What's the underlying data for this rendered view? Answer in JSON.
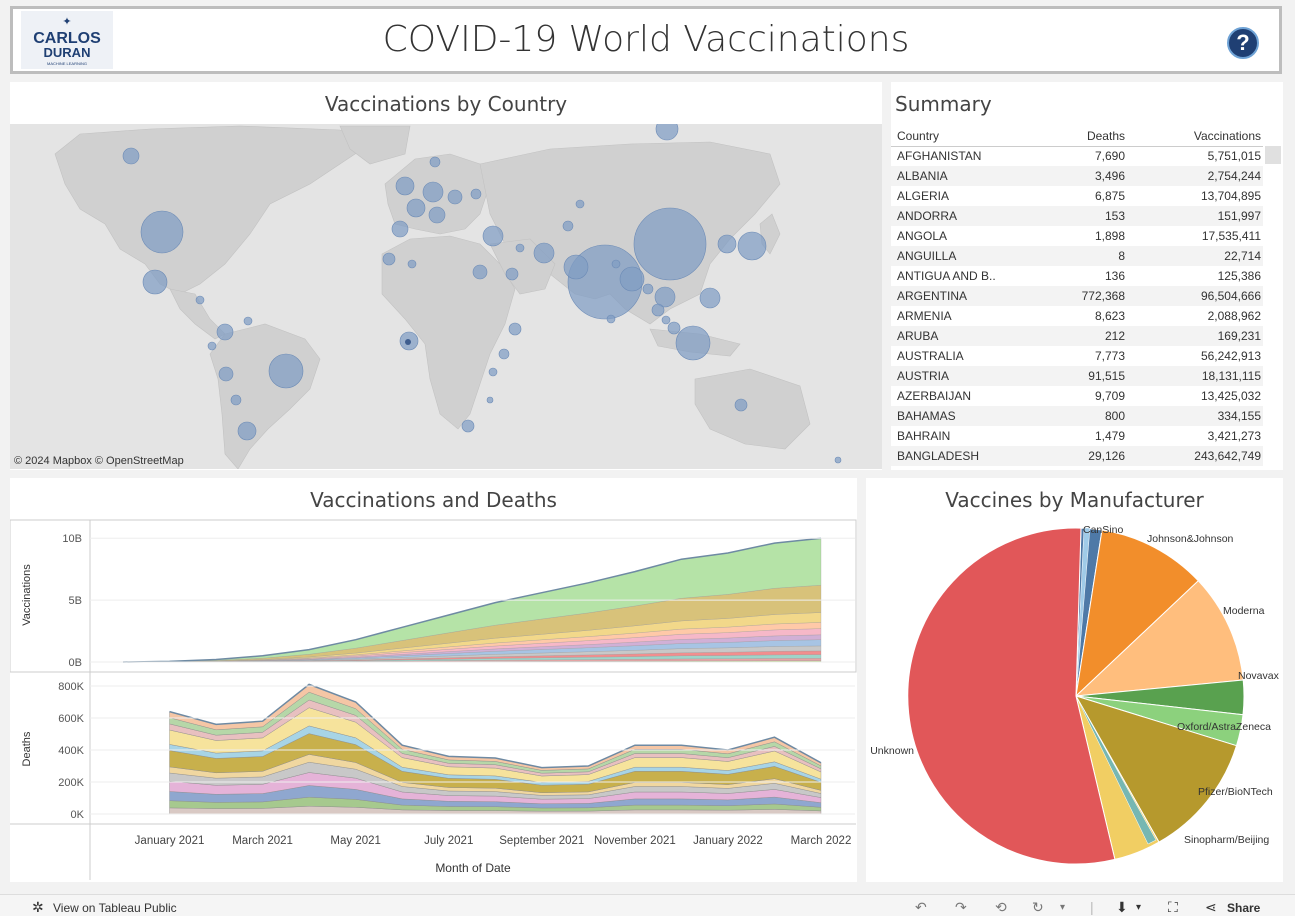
{
  "header": {
    "title": "COVID-19 World Vaccinations",
    "logo_text_1": "CARLOS",
    "logo_text_2": "DURAN",
    "logo_text_3": "MACHINE LEARNING",
    "help_icon": "question-icon",
    "help_label": "?"
  },
  "map_panel": {
    "title": "Vaccinations by Country",
    "credit": "© 2024 Mapbox  © OpenStreetMap"
  },
  "summary": {
    "title": "Summary",
    "columns": [
      "Country",
      "Deaths",
      "Vaccinations"
    ],
    "rows": [
      [
        "AFGHANISTAN",
        "7,690",
        "5,751,015"
      ],
      [
        "ALBANIA",
        "3,496",
        "2,754,244"
      ],
      [
        "ALGERIA",
        "6,875",
        "13,704,895"
      ],
      [
        "ANDORRA",
        "153",
        "151,997"
      ],
      [
        "ANGOLA",
        "1,898",
        "17,535,411"
      ],
      [
        "ANGUILLA",
        "8",
        "22,714"
      ],
      [
        "ANTIGUA AND B..",
        "136",
        "125,386"
      ],
      [
        "ARGENTINA",
        "772,368",
        "96,504,666"
      ],
      [
        "ARMENIA",
        "8,623",
        "2,088,962"
      ],
      [
        "ARUBA",
        "212",
        "169,231"
      ],
      [
        "AUSTRALIA",
        "7,773",
        "56,242,913"
      ],
      [
        "AUSTRIA",
        "91,515",
        "18,131,115"
      ],
      [
        "AZERBAIJAN",
        "9,709",
        "13,425,032"
      ],
      [
        "BAHAMAS",
        "800",
        "334,155"
      ],
      [
        "BAHRAIN",
        "1,479",
        "3,421,273"
      ],
      [
        "BANGLADESH",
        "29,126",
        "243,642,749"
      ]
    ]
  },
  "chart_panel": {
    "title": "Vaccinations and Deaths"
  },
  "chart_data": [
    {
      "type": "area",
      "title": "Vaccinations and Deaths",
      "xlabel": "Month of Date",
      "ylabel": "Vaccinations",
      "x_ticks": [
        "January 2021",
        "March 2021",
        "May 2021",
        "July 2021",
        "September 2021",
        "November 2021",
        "January 2022",
        "March 2022"
      ],
      "y_ticks": [
        "0B",
        "5B",
        "10B"
      ],
      "ylim": [
        0,
        10.5
      ],
      "x": [
        "2020-12",
        "2021-01",
        "2021-02",
        "2021-03",
        "2021-04",
        "2021-05",
        "2021-06",
        "2021-07",
        "2021-08",
        "2021-09",
        "2021-10",
        "2021-11",
        "2021-12",
        "2022-01",
        "2022-02",
        "2022-03"
      ],
      "total_billions": [
        0.0,
        0.05,
        0.2,
        0.5,
        1.0,
        1.8,
        2.8,
        3.8,
        4.8,
        5.6,
        6.4,
        7.3,
        8.3,
        8.8,
        9.6,
        10.0
      ]
    },
    {
      "type": "area",
      "ylabel": "Deaths",
      "y_ticks": [
        "0K",
        "200K",
        "400K",
        "600K",
        "800K"
      ],
      "ylim": [
        0,
        850
      ],
      "x": [
        "2021-01",
        "2021-02",
        "2021-03",
        "2021-04",
        "2021-05",
        "2021-06",
        "2021-07",
        "2021-08",
        "2021-09",
        "2021-10",
        "2021-11",
        "2021-12",
        "2022-01",
        "2022-02",
        "2022-03"
      ],
      "total_thousands": [
        640,
        560,
        580,
        810,
        700,
        430,
        360,
        350,
        290,
        300,
        430,
        430,
        400,
        480,
        320
      ]
    },
    {
      "type": "pie",
      "title": "Vaccines by Manufacturer",
      "labels": [
        "CanSino",
        "Johnson&Johnson",
        "Moderna",
        "Novavax",
        "Oxford/AstraZeneca",
        "Pfizer/BioNTech",
        "Sinopharm/Beijing",
        "Unknown"
      ],
      "values": [
        2.0,
        10.5,
        10.5,
        3.3,
        3.0,
        12.0,
        4.5,
        54.2
      ],
      "colors": [
        "#4e79a7",
        "#f28e2b",
        "#ffbe7d",
        "#59a14f",
        "#8cd17d",
        "#b6992d",
        "#f1ce63",
        "#e15759"
      ]
    }
  ],
  "pie_panel": {
    "title": "Vaccines by Manufacturer"
  },
  "footer": {
    "view_label": "View on Tableau Public",
    "share_label": "Share"
  }
}
